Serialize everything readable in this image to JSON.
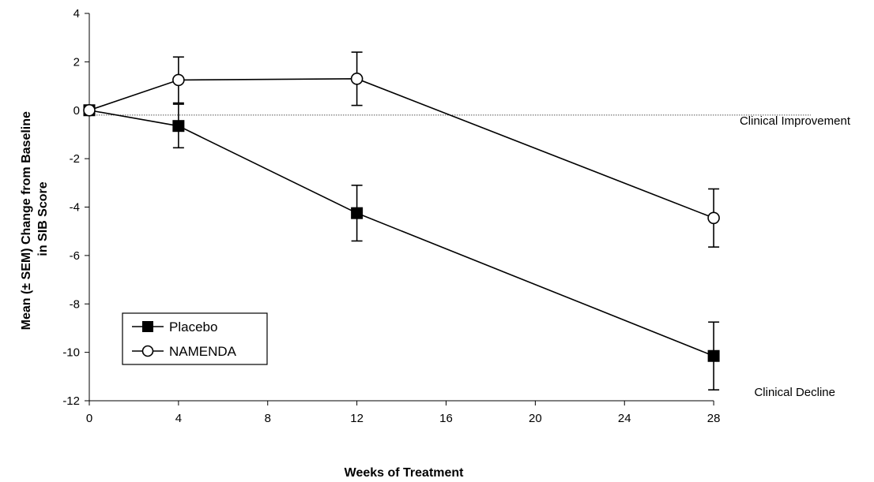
{
  "chart_data": {
    "type": "line",
    "title": "",
    "xlabel": "Weeks of Treatment",
    "ylabel_lines": [
      "Mean (± SEM) Change from Baseline",
      "in SIB Score"
    ],
    "xlim": [
      0,
      28
    ],
    "ylim": [
      -12,
      4
    ],
    "xticks": [
      0,
      4,
      8,
      12,
      16,
      20,
      24,
      28
    ],
    "yticks": [
      4,
      2,
      0,
      -2,
      -4,
      -6,
      -8,
      -10,
      -12
    ],
    "grid": false,
    "legend_position": "bottom-left",
    "reference_line": {
      "y": -0.2,
      "style": "dotted"
    },
    "annotations": [
      {
        "text": "Clinical Improvement",
        "x": 28,
        "y": -0.6
      },
      {
        "text": "Clinical Decline",
        "x": 28,
        "y": -11.8
      }
    ],
    "series": [
      {
        "name": "Placebo",
        "marker": "filled-square",
        "x": [
          0,
          4,
          12,
          28
        ],
        "y": [
          0,
          -0.65,
          -4.25,
          -10.15
        ],
        "error": [
          0,
          0.9,
          1.15,
          1.4
        ]
      },
      {
        "name": "NAMENDA",
        "marker": "open-circle",
        "x": [
          0,
          4,
          12,
          28
        ],
        "y": [
          0,
          1.25,
          1.3,
          -4.45
        ],
        "error": [
          0,
          0.95,
          1.1,
          1.2
        ]
      }
    ]
  }
}
